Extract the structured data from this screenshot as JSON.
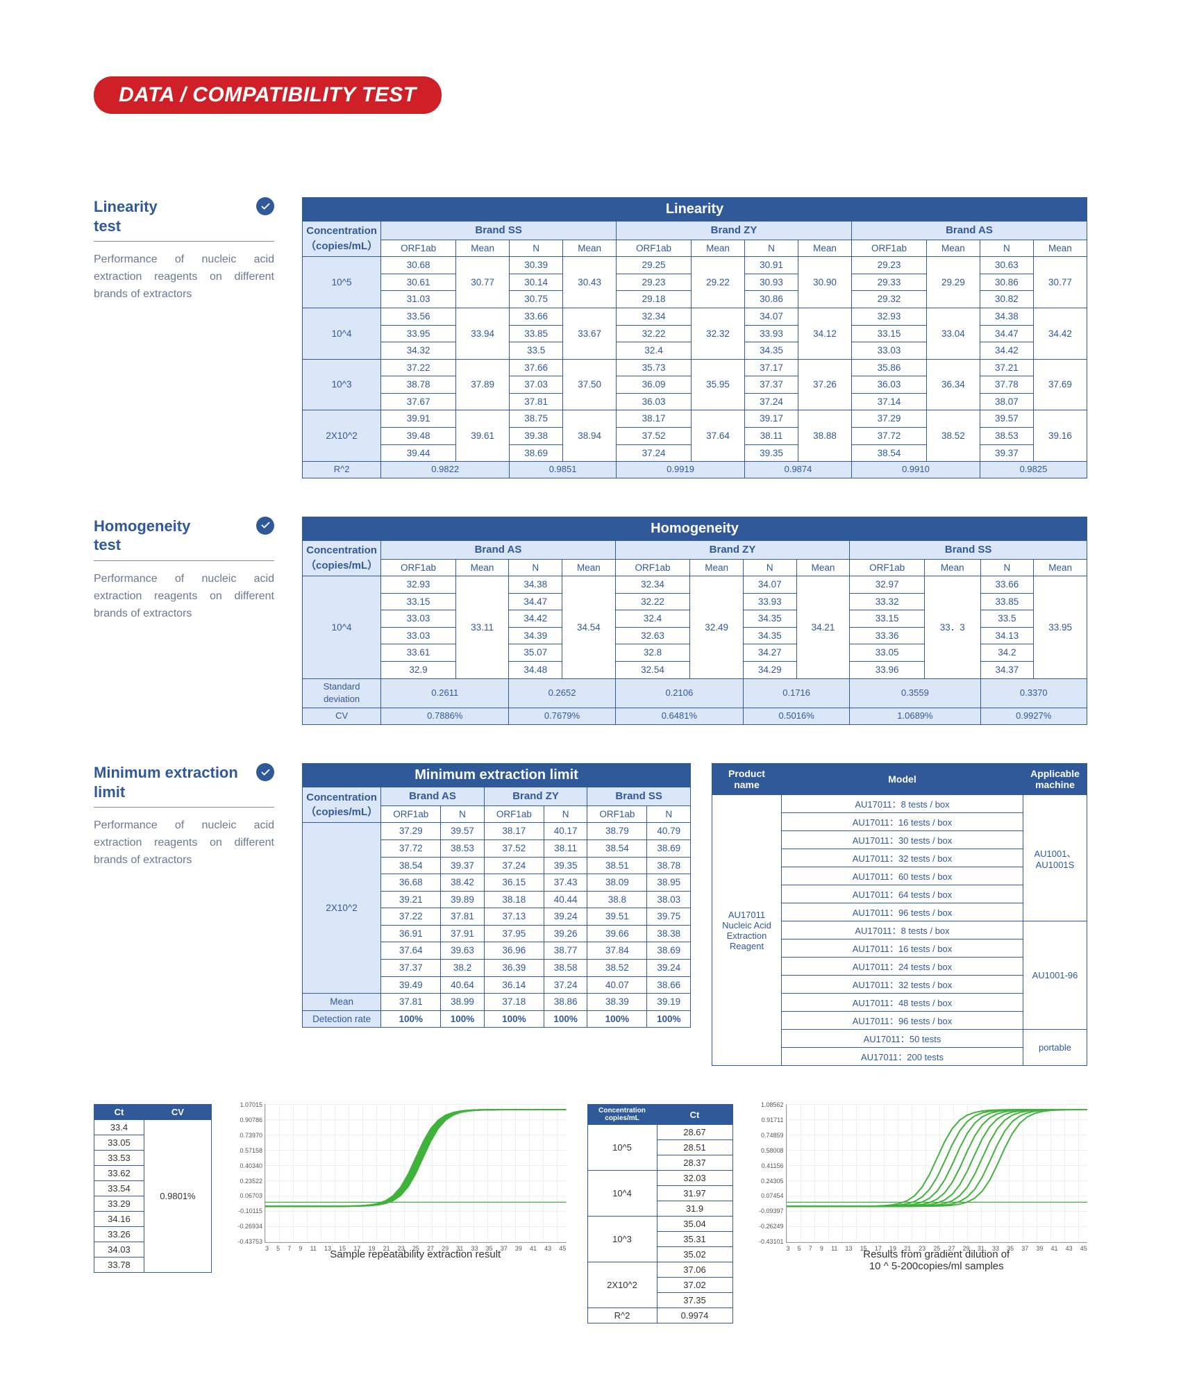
{
  "banner": "DATA / COMPATIBILITY TEST",
  "aside_desc": "Performance of nucleic acid extraction reagents on different brands of extractors",
  "titles": {
    "linearity": "Linearity\ntest",
    "homogeneity": "Homogeneity\ntest",
    "mel": "Minimum extraction limit"
  },
  "table_titles": {
    "linearity": "Linearity",
    "homogeneity": "Homogeneity",
    "mel": "Minimum extraction limit"
  },
  "concLabel": "Concentration\n（copies/mL）",
  "col_orf": "ORF1ab",
  "col_mean": "Mean",
  "col_n": "N",
  "linearity": {
    "brands": [
      "Brand SS",
      "Brand ZY",
      "Brand AS"
    ],
    "rows": [
      {
        "conc": "10^5",
        "orf": [
          [
            "30.68",
            "30.61",
            "31.03"
          ],
          [
            "29.25",
            "29.23",
            "29.18"
          ],
          [
            "29.23",
            "29.33",
            "29.32"
          ]
        ],
        "n": [
          [
            "30.39",
            "30.14",
            "30.75"
          ],
          [
            "30.91",
            "30.93",
            "30.86"
          ],
          [
            "30.63",
            "30.86",
            "30.82"
          ]
        ],
        "om": [
          "30.77",
          "29.22",
          "29.29"
        ],
        "nm": [
          "30.43",
          "30.90",
          "30.77"
        ]
      },
      {
        "conc": "10^4",
        "orf": [
          [
            "33.56",
            "33.95",
            "34.32"
          ],
          [
            "32.34",
            "32.22",
            "32.4"
          ],
          [
            "32.93",
            "33.15",
            "33.03"
          ]
        ],
        "n": [
          [
            "33.66",
            "33.85",
            "33.5"
          ],
          [
            "34.07",
            "33.93",
            "34.35"
          ],
          [
            "34.38",
            "34.47",
            "34.42"
          ]
        ],
        "om": [
          "33.94",
          "32.32",
          "33.04"
        ],
        "nm": [
          "33.67",
          "34.12",
          "34.42"
        ]
      },
      {
        "conc": "10^3",
        "orf": [
          [
            "37.22",
            "38.78",
            "37.67"
          ],
          [
            "35.73",
            "36.09",
            "36.03"
          ],
          [
            "35.86",
            "36.03",
            "37.14"
          ]
        ],
        "n": [
          [
            "37.66",
            "37.03",
            "37.81"
          ],
          [
            "37.17",
            "37.37",
            "37.24"
          ],
          [
            "37.21",
            "37.78",
            "38.07"
          ]
        ],
        "om": [
          "37.89",
          "35.95",
          "36.34"
        ],
        "nm": [
          "37.50",
          "37.26",
          "37.69"
        ]
      },
      {
        "conc": "2X10^2",
        "orf": [
          [
            "39.91",
            "39.48",
            "39.44"
          ],
          [
            "38.17",
            "37.52",
            "37.24"
          ],
          [
            "37.29",
            "37.72",
            "38.54"
          ]
        ],
        "n": [
          [
            "38.75",
            "39.38",
            "38.69"
          ],
          [
            "39.17",
            "38.11",
            "39.35"
          ],
          [
            "39.57",
            "38.53",
            "39.37"
          ]
        ],
        "om": [
          "39.61",
          "37.64",
          "38.52"
        ],
        "nm": [
          "38.94",
          "38.88",
          "39.16"
        ]
      }
    ],
    "r2label": "R^2",
    "r2": [
      "0.9822",
      "0.9851",
      "0.9919",
      "0.9874",
      "0.9910",
      "0.9825"
    ]
  },
  "homogeneity": {
    "brands": [
      "Brand AS",
      "Brand ZY",
      "Brand SS"
    ],
    "conc": "10^4",
    "orf": [
      [
        "32.93",
        "33.15",
        "33.03",
        "33.03",
        "33.61",
        "32.9"
      ],
      [
        "32.34",
        "32.22",
        "32.4",
        "32.63",
        "32.8",
        "32.54"
      ],
      [
        "32.97",
        "33.32",
        "33.15",
        "33.36",
        "33.05",
        "33.96"
      ]
    ],
    "n": [
      [
        "34.38",
        "34.47",
        "34.42",
        "34.39",
        "35.07",
        "34.48"
      ],
      [
        "34.07",
        "33.93",
        "34.35",
        "34.35",
        "34.27",
        "34.29"
      ],
      [
        "33.66",
        "33.85",
        "33.5",
        "34.13",
        "34.2",
        "34.37"
      ]
    ],
    "om": [
      "33.11",
      "32.49",
      "33．3"
    ],
    "nm": [
      "34.54",
      "34.21",
      "33.95"
    ],
    "sdlabel": "Standard deviation",
    "cvlabel": "CV",
    "sd": [
      "0.2611",
      "0.2652",
      "0.2106",
      "0.1716",
      "0.3559",
      "0.3370"
    ],
    "cv": [
      "0.7886%",
      "0.7679%",
      "0.6481%",
      "0.5016%",
      "1.0689%",
      "0.9927%"
    ]
  },
  "mel": {
    "brands": [
      "Brand AS",
      "Brand ZY",
      "Brand SS"
    ],
    "conc": "2X10^2",
    "rows": [
      [
        "37.29",
        "39.57",
        "38.17",
        "40.17",
        "38.79",
        "40.79"
      ],
      [
        "37.72",
        "38.53",
        "37.52",
        "38.11",
        "38.54",
        "38.69"
      ],
      [
        "38.54",
        "39.37",
        "37.24",
        "39.35",
        "38.51",
        "38.78"
      ],
      [
        "36.68",
        "38.42",
        "36.15",
        "37.43",
        "38.09",
        "38.95"
      ],
      [
        "39.21",
        "39.89",
        "38.18",
        "40.44",
        "38.8",
        "38.03"
      ],
      [
        "37.22",
        "37.81",
        "37.13",
        "39.24",
        "39.51",
        "39.75"
      ],
      [
        "36.91",
        "37.91",
        "37.95",
        "39.26",
        "39.66",
        "38.38"
      ],
      [
        "37.64",
        "39.63",
        "36.96",
        "38.77",
        "37.84",
        "38.69"
      ],
      [
        "37.37",
        "38.2",
        "36.39",
        "38.58",
        "38.52",
        "39.24"
      ],
      [
        "39.49",
        "40.64",
        "36.14",
        "37.24",
        "40.07",
        "38.66"
      ]
    ],
    "meanlabel": "Mean",
    "mean": [
      "37.81",
      "38.99",
      "37.18",
      "38.86",
      "38.39",
      "39.19"
    ],
    "drlabel": "Detection rate",
    "dr": [
      "100%",
      "100%",
      "100%",
      "100%",
      "100%",
      "100%"
    ]
  },
  "product": {
    "headers": [
      "Product name",
      "Model",
      "Applicable machine"
    ],
    "name": "AU17011 Nucleic Acid Extraction Reagent",
    "groups": [
      {
        "models": [
          "AU17011：8 tests / box",
          "AU17011：16 tests / box",
          "AU17011：30 tests / box",
          "AU17011：32 tests / box",
          "AU17011：60 tests / box",
          "AU17011：64 tests / box",
          "AU17011：96 tests / box"
        ],
        "machine": "AU1001、AU1001S"
      },
      {
        "models": [
          "AU17011：8 tests / box",
          "AU17011：16 tests / box",
          "AU17011：24 tests / box",
          "AU17011：32 tests / box",
          "AU17011：48 tests / box",
          "AU17011：96 tests / box"
        ],
        "machine": "AU1001-96"
      },
      {
        "models": [
          "AU17011：50 tests",
          "AU17011：200 tests"
        ],
        "machine": "portable"
      }
    ]
  },
  "ctcv": {
    "headers": [
      "Ct",
      "CV"
    ],
    "ct": [
      "33.4",
      "33.05",
      "33.53",
      "33.62",
      "33.54",
      "33.29",
      "34.16",
      "33.26",
      "34.03",
      "33.78"
    ],
    "cv": "0.9801%"
  },
  "concct": {
    "h_conc": "Concentration copies/mL",
    "h_ct": "Ct",
    "rows": [
      {
        "c": "10^5",
        "v": [
          "28.67",
          "28.51",
          "28.37"
        ]
      },
      {
        "c": "10^4",
        "v": [
          "32.03",
          "31.97",
          "31.9"
        ]
      },
      {
        "c": "10^3",
        "v": [
          "35.04",
          "35.31",
          "35.02"
        ]
      },
      {
        "c": "2X10^2",
        "v": [
          "37.06",
          "37.02",
          "37.35"
        ]
      }
    ],
    "r2label": "R^2",
    "r2": "0.9974"
  },
  "chart1": {
    "caption": "Sample repeatability extraction result",
    "yticks": [
      "1.07015",
      "0.90786",
      "0.73970",
      "0.57158",
      "0.40340",
      "0.23522",
      "0.06703",
      "-0.10115",
      "-0.26934",
      "-0.43753"
    ],
    "xticks": [
      "3",
      "5",
      "7",
      "9",
      "11",
      "13",
      "15",
      "17",
      "19",
      "21",
      "23",
      "25",
      "27",
      "29",
      "31",
      "33",
      "35",
      "37",
      "39",
      "41",
      "43",
      "45"
    ],
    "baseline_y": 0.71,
    "curves_offsets": [
      0,
      0.003,
      0.006,
      0.009,
      0.012,
      0.015,
      0.018,
      0.021,
      0.024
    ],
    "curve_color": "#3fb23a"
  },
  "chart2": {
    "caption": "Results from gradient dilution of\n10 ^ 5-200copies/ml samples",
    "yticks": [
      "1.08562",
      "0.91711",
      "0.74859",
      "0.58008",
      "0.41156",
      "0.24305",
      "0.07454",
      "-0.09397",
      "-0.26249",
      "-0.43101"
    ],
    "xticks": [
      "3",
      "5",
      "7",
      "9",
      "11",
      "13",
      "15",
      "17",
      "19",
      "21",
      "23",
      "25",
      "27",
      "29",
      "31",
      "33",
      "35",
      "37",
      "39",
      "41",
      "43",
      "45"
    ],
    "baseline_y": 0.71,
    "curves_offsets": [
      0,
      0.03,
      0.06,
      0.09,
      0.12,
      0.15,
      0.18,
      0.21
    ],
    "curve_color": "#3fb23a"
  }
}
